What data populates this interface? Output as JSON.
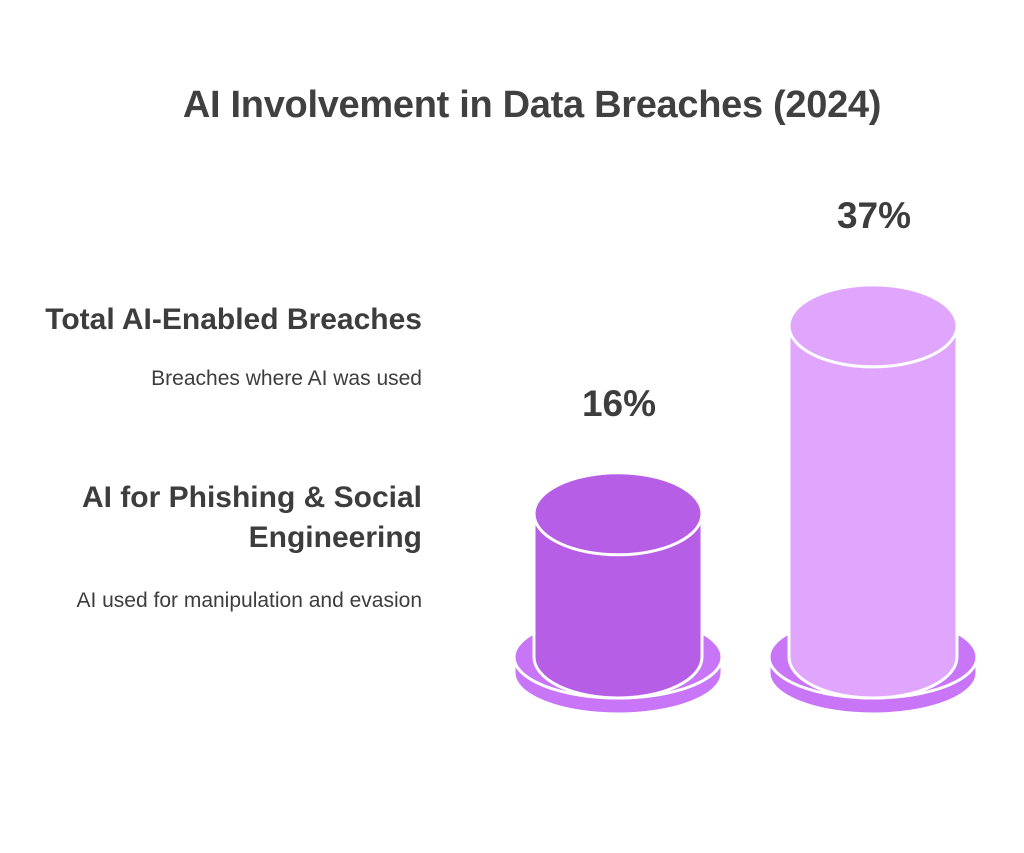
{
  "title": "AI Involvement in Data Breaches (2024)",
  "legend": [
    {
      "heading": "Total AI-Enabled Breaches",
      "description": "Breaches where AI was used"
    },
    {
      "heading": "AI for Phishing & Social Engineering",
      "description": "AI used for manipulation and evasion"
    }
  ],
  "chart_data": {
    "type": "bar",
    "categories": [
      "AI for Phishing & Social Engineering",
      "Total AI-Enabled Breaches"
    ],
    "values": [
      16,
      37
    ],
    "value_labels": [
      "16%",
      "37%"
    ],
    "unit": "%",
    "ylim": [
      0,
      40
    ],
    "grid": false,
    "colors": [
      "#b65fe6",
      "#e0a6fe"
    ],
    "base_color": "#c975f7"
  }
}
